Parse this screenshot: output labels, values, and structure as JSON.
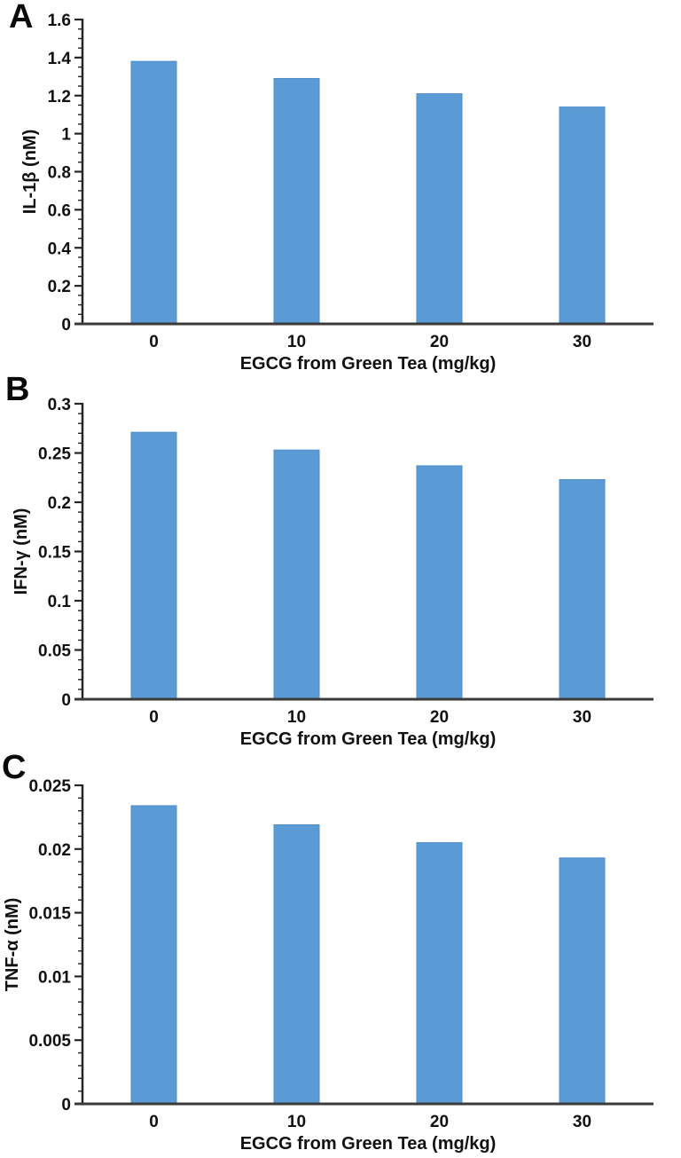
{
  "figure": {
    "background": "#FFFFFF",
    "bar_color": "#5B9BD5",
    "bar_edge_color": "#4E8CC9",
    "x_axis_color": "#3A3A3A",
    "y_axis_color": "#262626",
    "text_color": "#111111"
  },
  "chart_data": [
    {
      "type": "bar",
      "panel_label": "A",
      "title": "",
      "categories": [
        "0",
        "10",
        "20",
        "30"
      ],
      "values": [
        1.38,
        1.29,
        1.21,
        1.14
      ],
      "xlabel": "EGCG from Green Tea (mg/kg)",
      "ylabel": "IL-1β (nM)",
      "ylim": [
        0,
        1.6
      ],
      "ytick_values": [
        0,
        0.2,
        0.4,
        0.6,
        0.8,
        1,
        1.2,
        1.4,
        1.6
      ],
      "ytick_labels": [
        "0",
        "0.2",
        "0.4",
        "0.6",
        "0.8",
        "1",
        "1.2",
        "1.4",
        "1.6"
      ],
      "minor_tick_step": 0.05,
      "grid": false,
      "legend": null
    },
    {
      "type": "bar",
      "panel_label": "B",
      "title": "",
      "categories": [
        "0",
        "10",
        "20",
        "30"
      ],
      "values": [
        0.271,
        0.253,
        0.237,
        0.223
      ],
      "xlabel": "EGCG from Green Tea (mg/kg)",
      "ylabel": "IFN-γ (nM)",
      "ylim": [
        0,
        0.3
      ],
      "ytick_values": [
        0,
        0.05,
        0.1,
        0.15,
        0.2,
        0.25,
        0.3
      ],
      "ytick_labels": [
        "0",
        "0.05",
        "0.1",
        "0.15",
        "0.2",
        "0.25",
        "0.3"
      ],
      "minor_tick_step": 0.01,
      "grid": false,
      "legend": null
    },
    {
      "type": "bar",
      "panel_label": "C",
      "title": "",
      "categories": [
        "0",
        "10",
        "20",
        "30"
      ],
      "values": [
        0.0234,
        0.0219,
        0.0205,
        0.0193
      ],
      "xlabel": "EGCG from Green Tea (mg/kg)",
      "ylabel": "TNF-α (nM)",
      "ylim": [
        0,
        0.025
      ],
      "ytick_values": [
        0,
        0.005,
        0.01,
        0.015,
        0.02,
        0.025
      ],
      "ytick_labels": [
        "0",
        "0.005",
        "0.01",
        "0.015",
        "0.02",
        "0.025"
      ],
      "minor_tick_step": 0.001,
      "grid": false,
      "legend": null
    }
  ]
}
